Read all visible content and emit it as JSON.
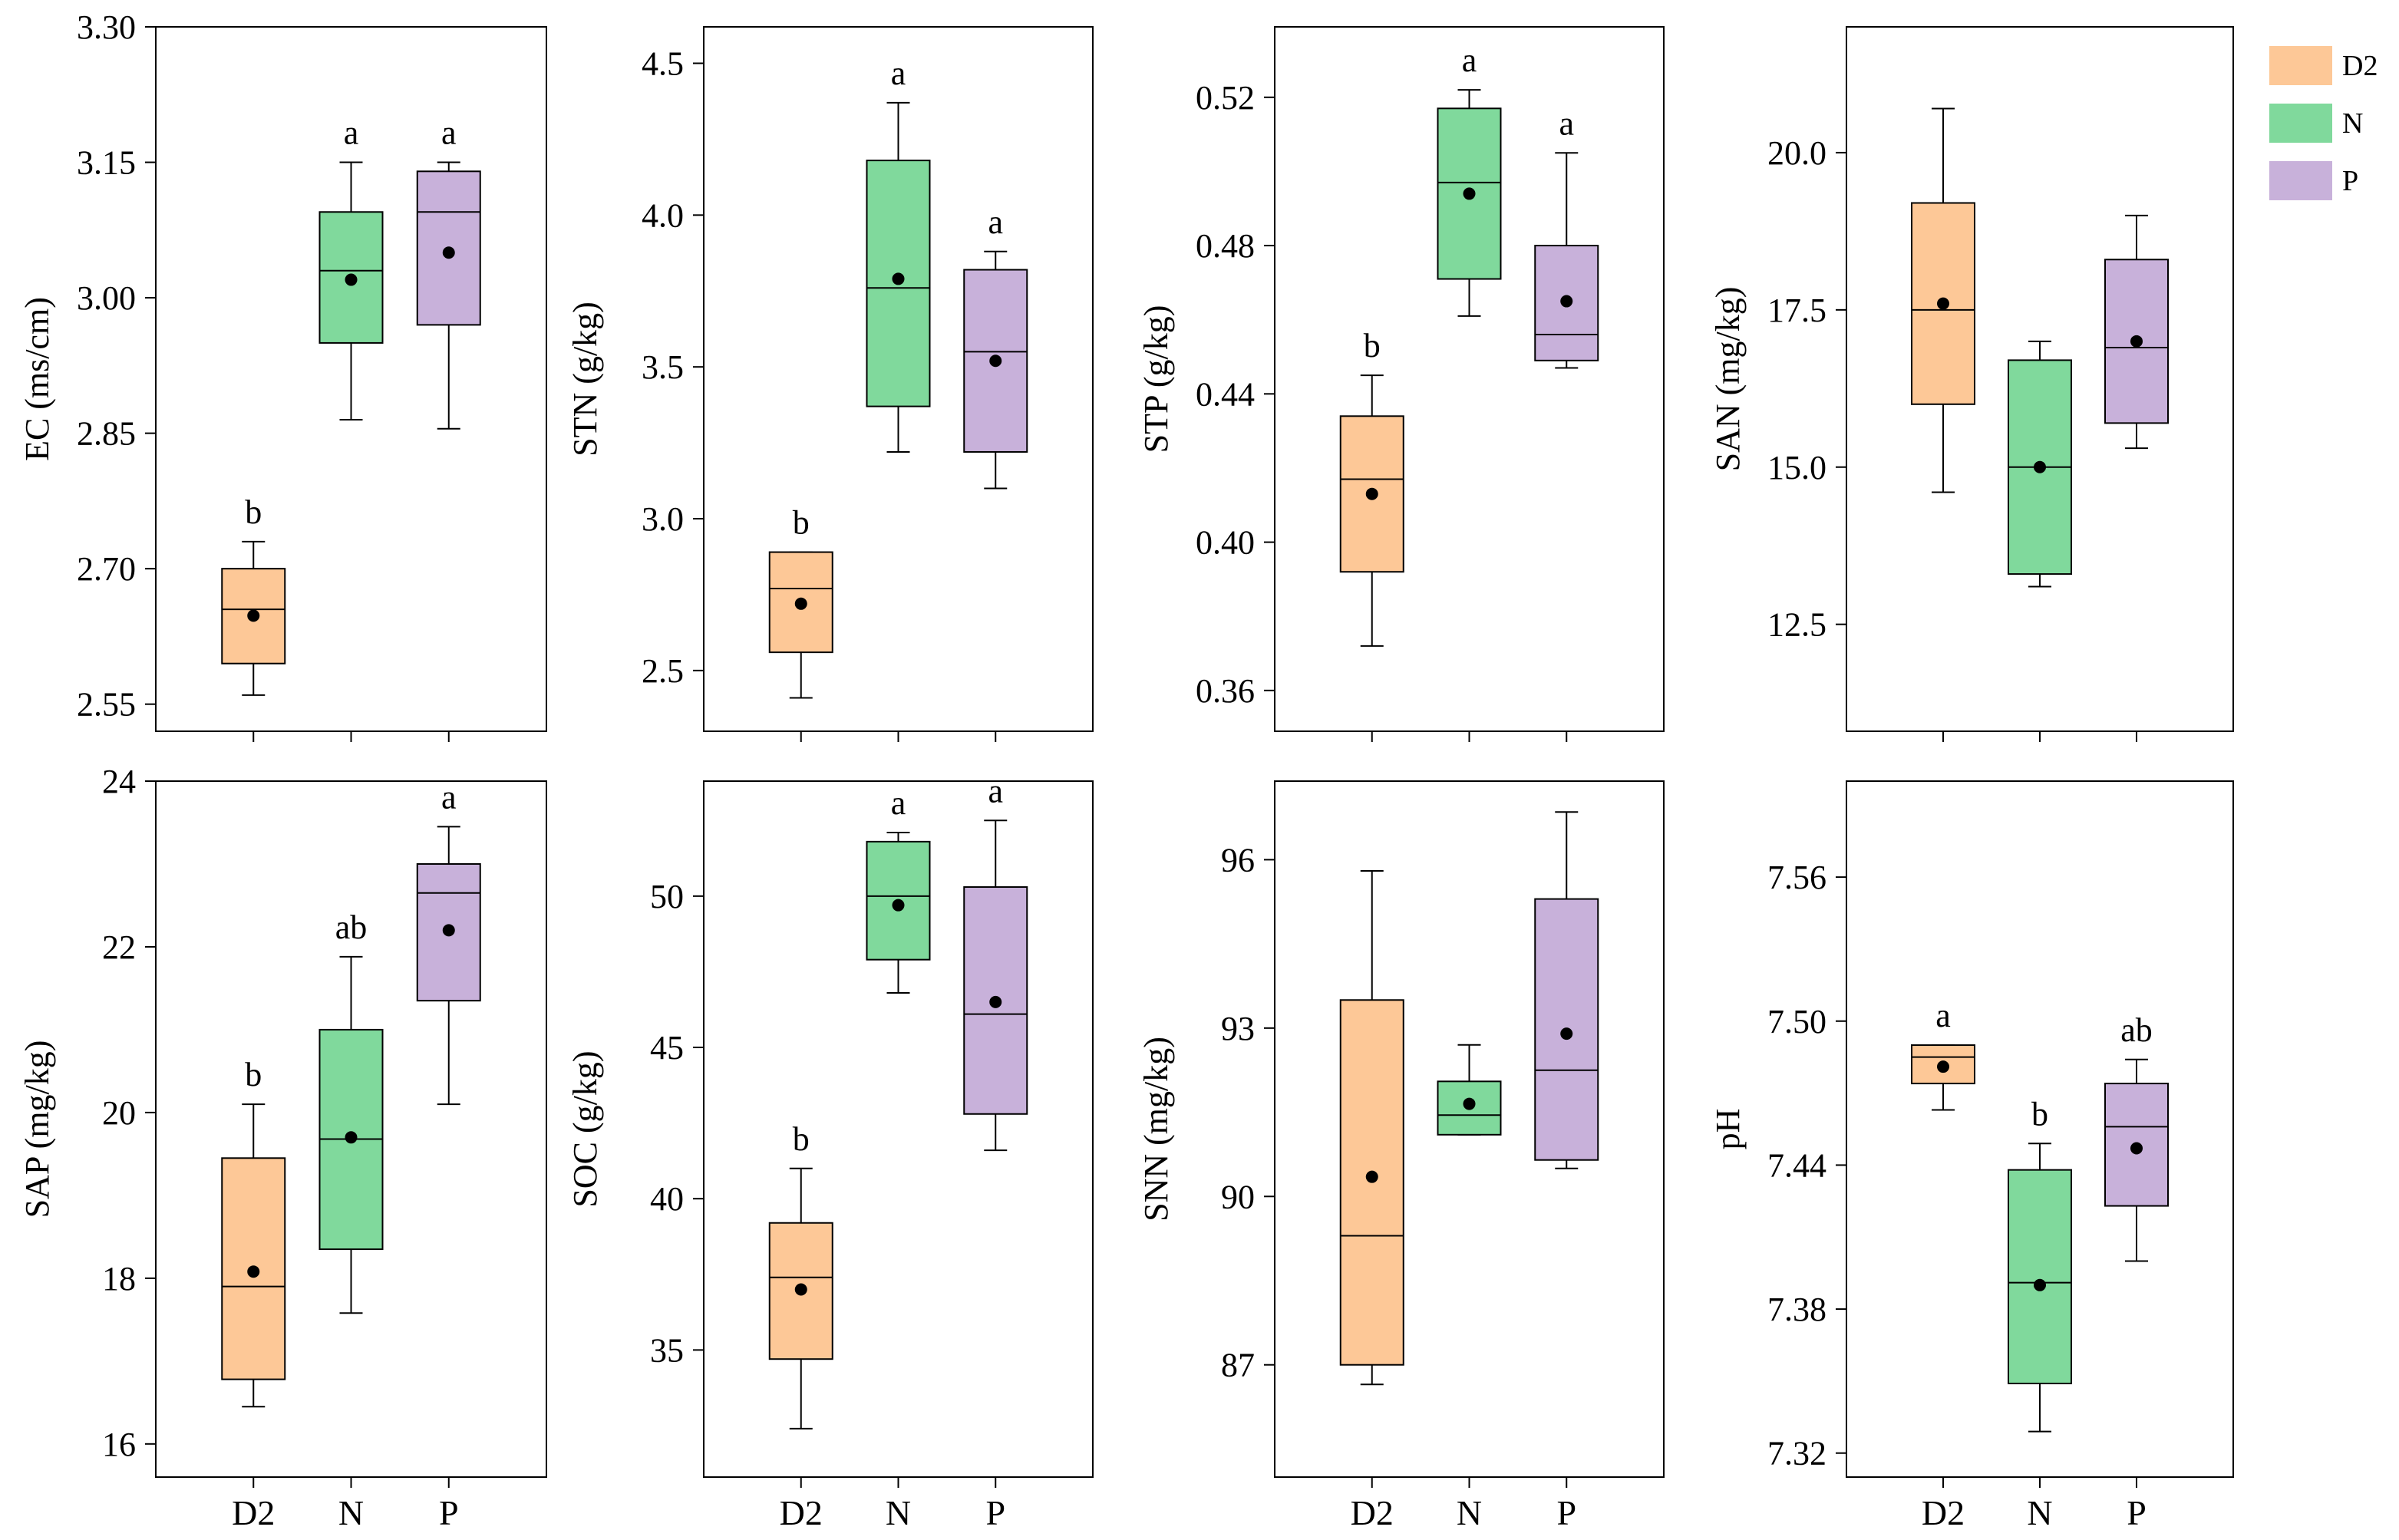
{
  "colors": {
    "D2": "#fdc897",
    "N": "#80d99c",
    "P": "#c8b1da",
    "stroke": "#000000"
  },
  "legend": [
    {
      "key": "D2",
      "label": "D2",
      "color": "#fdc897"
    },
    {
      "key": "N",
      "label": "N",
      "color": "#80d99c"
    },
    {
      "key": "P",
      "label": "P",
      "color": "#c8b1da"
    }
  ],
  "chart_data": [
    {
      "type": "box",
      "ylabel": "EC (ms/cm)",
      "ylim": [
        2.52,
        3.3
      ],
      "yticks": [
        2.55,
        2.7,
        2.85,
        3.0,
        3.15,
        3.3
      ],
      "ytick_labels": [
        "2.55",
        "2.70",
        "2.85",
        "3.00",
        "3.15",
        "3.30"
      ],
      "categories": [
        "D2",
        "N",
        "P"
      ],
      "show_xticklabels": false,
      "boxes": [
        {
          "group": "D2",
          "min": 2.56,
          "q1": 2.595,
          "median": 2.655,
          "q3": 2.7,
          "max": 2.73,
          "mean": 2.648,
          "letter": "b"
        },
        {
          "group": "N",
          "min": 2.865,
          "q1": 2.95,
          "median": 3.03,
          "q3": 3.095,
          "max": 3.15,
          "mean": 3.02,
          "letter": "a"
        },
        {
          "group": "P",
          "min": 2.855,
          "q1": 2.97,
          "median": 3.095,
          "q3": 3.14,
          "max": 3.15,
          "mean": 3.05,
          "letter": "a"
        }
      ]
    },
    {
      "type": "box",
      "ylabel": "STN (g/kg)",
      "ylim": [
        2.3,
        4.62
      ],
      "yticks": [
        2.5,
        3.0,
        3.5,
        4.0,
        4.5
      ],
      "ytick_labels": [
        "2.5",
        "3.0",
        "3.5",
        "4.0",
        "4.5"
      ],
      "categories": [
        "D2",
        "N",
        "P"
      ],
      "show_xticklabels": false,
      "boxes": [
        {
          "group": "D2",
          "min": 2.41,
          "q1": 2.56,
          "median": 2.77,
          "q3": 2.89,
          "max": 2.89,
          "mean": 2.72,
          "letter": "b"
        },
        {
          "group": "N",
          "min": 3.22,
          "q1": 3.37,
          "median": 3.76,
          "q3": 4.18,
          "max": 4.37,
          "mean": 3.79,
          "letter": "a"
        },
        {
          "group": "P",
          "min": 3.1,
          "q1": 3.22,
          "median": 3.55,
          "q3": 3.82,
          "max": 3.88,
          "mean": 3.52,
          "letter": "a"
        }
      ]
    },
    {
      "type": "box",
      "ylabel": "STP (g/kg)",
      "ylim": [
        0.349,
        0.539
      ],
      "yticks": [
        0.36,
        0.4,
        0.44,
        0.48,
        0.52
      ],
      "ytick_labels": [
        "0.36",
        "0.40",
        "0.44",
        "0.48",
        "0.52"
      ],
      "categories": [
        "D2",
        "N",
        "P"
      ],
      "show_xticklabels": false,
      "boxes": [
        {
          "group": "D2",
          "min": 0.372,
          "q1": 0.392,
          "median": 0.417,
          "q3": 0.434,
          "max": 0.445,
          "mean": 0.413,
          "letter": "b"
        },
        {
          "group": "N",
          "min": 0.461,
          "q1": 0.471,
          "median": 0.497,
          "q3": 0.517,
          "max": 0.522,
          "mean": 0.494,
          "letter": "a"
        },
        {
          "group": "P",
          "min": 0.447,
          "q1": 0.449,
          "median": 0.456,
          "q3": 0.48,
          "max": 0.505,
          "mean": 0.465,
          "letter": "a"
        }
      ]
    },
    {
      "type": "box",
      "ylabel": "SAN (mg/kg)",
      "ylim": [
        10.8,
        22.0
      ],
      "yticks": [
        12.5,
        15.0,
        17.5,
        20.0
      ],
      "ytick_labels": [
        "12.5",
        "15.0",
        "17.5",
        "20.0"
      ],
      "categories": [
        "D2",
        "N",
        "P"
      ],
      "show_xticklabels": false,
      "boxes": [
        {
          "group": "D2",
          "min": 14.6,
          "q1": 16.0,
          "median": 17.5,
          "q3": 19.2,
          "max": 20.7,
          "mean": 17.6,
          "letter": ""
        },
        {
          "group": "N",
          "min": 13.1,
          "q1": 13.3,
          "median": 15.0,
          "q3": 16.7,
          "max": 17.0,
          "mean": 15.0,
          "letter": ""
        },
        {
          "group": "P",
          "min": 15.3,
          "q1": 15.7,
          "median": 16.9,
          "q3": 18.3,
          "max": 19.0,
          "mean": 17.0,
          "letter": ""
        }
      ]
    },
    {
      "type": "box",
      "ylabel": "SAP (mg/kg)",
      "ylim": [
        15.6,
        24.0
      ],
      "yticks": [
        16,
        18,
        20,
        22,
        24
      ],
      "ytick_labels": [
        "16",
        "18",
        "20",
        "22",
        "24"
      ],
      "categories": [
        "D2",
        "N",
        "P"
      ],
      "show_xticklabels": true,
      "boxes": [
        {
          "group": "D2",
          "min": 16.45,
          "q1": 16.78,
          "median": 17.9,
          "q3": 19.45,
          "max": 20.1,
          "mean": 18.08,
          "letter": "b"
        },
        {
          "group": "N",
          "min": 17.58,
          "q1": 18.35,
          "median": 19.68,
          "q3": 21.0,
          "max": 21.88,
          "mean": 19.7,
          "letter": "ab"
        },
        {
          "group": "P",
          "min": 20.1,
          "q1": 21.35,
          "median": 22.65,
          "q3": 23.0,
          "max": 23.45,
          "mean": 22.2,
          "letter": "a"
        }
      ]
    },
    {
      "type": "box",
      "ylabel": "SOC (g/kg)",
      "ylim": [
        30.8,
        53.8
      ],
      "yticks": [
        35,
        40,
        45,
        50
      ],
      "ytick_labels": [
        "35",
        "40",
        "45",
        "50"
      ],
      "categories": [
        "D2",
        "N",
        "P"
      ],
      "show_xticklabels": true,
      "boxes": [
        {
          "group": "D2",
          "min": 32.4,
          "q1": 34.7,
          "median": 37.4,
          "q3": 39.2,
          "max": 41.0,
          "mean": 37.0,
          "letter": "b"
        },
        {
          "group": "N",
          "min": 46.8,
          "q1": 47.9,
          "median": 50.0,
          "q3": 51.8,
          "max": 52.1,
          "mean": 49.7,
          "letter": "a"
        },
        {
          "group": "P",
          "min": 41.6,
          "q1": 42.8,
          "median": 46.1,
          "q3": 50.3,
          "max": 52.5,
          "mean": 46.5,
          "letter": "a"
        }
      ]
    },
    {
      "type": "box",
      "ylabel": "SNN (mg/kg)",
      "ylim": [
        85.0,
        97.4
      ],
      "yticks": [
        87,
        90,
        93,
        96
      ],
      "ytick_labels": [
        "87",
        "90",
        "93",
        "96"
      ],
      "categories": [
        "D2",
        "N",
        "P"
      ],
      "show_xticklabels": true,
      "boxes": [
        {
          "group": "D2",
          "min": 86.65,
          "q1": 87.0,
          "median": 89.3,
          "q3": 93.5,
          "max": 95.8,
          "mean": 90.35,
          "letter": ""
        },
        {
          "group": "N",
          "min": 91.1,
          "q1": 91.1,
          "median": 91.45,
          "q3": 92.05,
          "max": 92.7,
          "mean": 91.65,
          "letter": ""
        },
        {
          "group": "P",
          "min": 90.5,
          "q1": 90.65,
          "median": 92.25,
          "q3": 95.3,
          "max": 96.85,
          "mean": 92.9,
          "letter": ""
        }
      ]
    },
    {
      "type": "box",
      "ylabel": "pH",
      "ylim": [
        7.31,
        7.6
      ],
      "yticks": [
        7.32,
        7.38,
        7.44,
        7.5,
        7.56
      ],
      "ytick_labels": [
        "7.32",
        "7.38",
        "7.44",
        "7.50",
        "7.56"
      ],
      "categories": [
        "D2",
        "N",
        "P"
      ],
      "show_xticklabels": true,
      "boxes": [
        {
          "group": "D2",
          "min": 7.463,
          "q1": 7.474,
          "median": 7.485,
          "q3": 7.49,
          "max": 7.49,
          "mean": 7.481,
          "letter": "a"
        },
        {
          "group": "N",
          "min": 7.329,
          "q1": 7.349,
          "median": 7.391,
          "q3": 7.438,
          "max": 7.449,
          "mean": 7.39,
          "letter": "b"
        },
        {
          "group": "P",
          "min": 7.4,
          "q1": 7.423,
          "median": 7.456,
          "q3": 7.474,
          "max": 7.484,
          "mean": 7.447,
          "letter": "ab"
        }
      ]
    }
  ]
}
